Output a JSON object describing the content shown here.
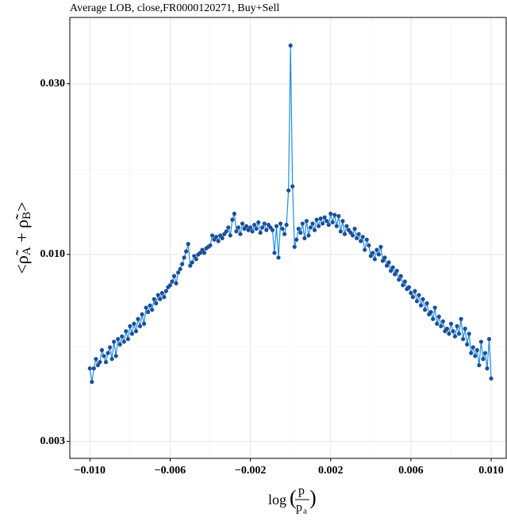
{
  "chart_data": {
    "type": "line",
    "title": "Average LOB, close,FR0000120271, Buy+Sell",
    "x_label": {
      "func": "log",
      "numerator": "p",
      "denominator": "p",
      "sub": "a"
    },
    "y_label": [
      "<ρ̃",
      "A",
      " + ρ̃",
      "B",
      ">"
    ],
    "log_y": true,
    "grid": true,
    "line_color": "#1f8fe0",
    "point_color": "#1c4f96",
    "xlim": [
      -0.011,
      0.01075
    ],
    "ylim": [
      0.00269,
      0.046
    ],
    "xticks": [
      {
        "value": -0.01,
        "label": "−0.010"
      },
      {
        "value": -0.006,
        "label": "−0.006"
      },
      {
        "value": -0.002,
        "label": "−0.002"
      },
      {
        "value": 0.002,
        "label": "0.002"
      },
      {
        "value": 0.006,
        "label": "0.006"
      },
      {
        "value": 0.01,
        "label": "0.010"
      }
    ],
    "yticks": [
      {
        "value": 0.003,
        "label": "0.003"
      },
      {
        "value": 0.01,
        "label": "0.010"
      },
      {
        "value": 0.03,
        "label": "0.030"
      }
    ],
    "x": [
      -0.01,
      -0.0099,
      -0.0098,
      -0.0097,
      -0.0096,
      -0.0095,
      -0.0094,
      -0.0093,
      -0.0092,
      -0.0091,
      -0.009,
      -0.0089,
      -0.0088,
      -0.0087,
      -0.0086,
      -0.0085,
      -0.0084,
      -0.0083,
      -0.0082,
      -0.0081,
      -0.008,
      -0.0079,
      -0.0078,
      -0.0077,
      -0.0076,
      -0.0075,
      -0.0074,
      -0.0073,
      -0.0072,
      -0.0071,
      -0.007,
      -0.0069,
      -0.0068,
      -0.0067,
      -0.0066,
      -0.0065,
      -0.0064,
      -0.0063,
      -0.0062,
      -0.0061,
      -0.006,
      -0.0059,
      -0.0058,
      -0.0057,
      -0.0056,
      -0.0055,
      -0.0054,
      -0.0053,
      -0.0052,
      -0.0051,
      -0.005,
      -0.0049,
      -0.0048,
      -0.0047,
      -0.0046,
      -0.0045,
      -0.0044,
      -0.0043,
      -0.0042,
      -0.0041,
      -0.004,
      -0.0039,
      -0.0038,
      -0.0037,
      -0.0036,
      -0.0035,
      -0.0034,
      -0.0033,
      -0.0032,
      -0.0031,
      -0.003,
      -0.0029,
      -0.0028,
      -0.0027,
      -0.0026,
      -0.0025,
      -0.0024,
      -0.0023,
      -0.0022,
      -0.0021,
      -0.002,
      -0.0019,
      -0.0018,
      -0.0017,
      -0.0016,
      -0.0015,
      -0.0014,
      -0.0013,
      -0.0012,
      -0.0011,
      -0.001,
      -0.0009,
      -0.0008,
      -0.0007,
      -0.0006,
      -0.0005,
      -0.0004,
      -0.0003,
      -0.0002,
      -0.0001,
      0,
      0.0001,
      0.0002,
      0.0003,
      0.0004,
      0.0005,
      0.0006,
      0.0007,
      0.0008,
      0.0009,
      0.001,
      0.0011,
      0.0012,
      0.0013,
      0.0014,
      0.0015,
      0.0016,
      0.0017,
      0.0018,
      0.0019,
      0.002,
      0.0021,
      0.0022,
      0.0023,
      0.0024,
      0.0025,
      0.0026,
      0.0027,
      0.0028,
      0.0029,
      0.003,
      0.0031,
      0.0032,
      0.0033,
      0.0034,
      0.0035,
      0.0036,
      0.0037,
      0.0038,
      0.0039,
      0.004,
      0.0041,
      0.0042,
      0.0043,
      0.0044,
      0.0045,
      0.0046,
      0.0047,
      0.0048,
      0.0049,
      0.005,
      0.0051,
      0.0052,
      0.0053,
      0.0054,
      0.0055,
      0.0056,
      0.0057,
      0.0058,
      0.0059,
      0.006,
      0.0061,
      0.0062,
      0.0063,
      0.0064,
      0.0065,
      0.0066,
      0.0067,
      0.0068,
      0.0069,
      0.007,
      0.0071,
      0.0072,
      0.0073,
      0.0074,
      0.0075,
      0.0076,
      0.0077,
      0.0078,
      0.0079,
      0.008,
      0.0081,
      0.0082,
      0.0083,
      0.0084,
      0.0085,
      0.0086,
      0.0087,
      0.0088,
      0.0089,
      0.009,
      0.0091,
      0.0092,
      0.0093,
      0.0094,
      0.0095,
      0.0096,
      0.0097,
      0.0098,
      0.0099,
      0.01
    ],
    "values": [
      0.0048,
      0.0044,
      0.0048,
      0.0051,
      0.0049,
      0.005,
      0.0054,
      0.0052,
      0.005,
      0.0053,
      0.0055,
      0.0051,
      0.0057,
      0.0052,
      0.0058,
      0.0056,
      0.0059,
      0.0057,
      0.0061,
      0.0058,
      0.0063,
      0.006,
      0.0064,
      0.0061,
      0.0066,
      0.0063,
      0.0068,
      0.0064,
      0.0071,
      0.0069,
      0.0072,
      0.007,
      0.0075,
      0.0073,
      0.0077,
      0.0075,
      0.0078,
      0.0076,
      0.0079,
      0.0081,
      0.0082,
      0.0084,
      0.0087,
      0.0083,
      0.0089,
      0.0091,
      0.0094,
      0.0098,
      0.0102,
      0.0107,
      0.0093,
      0.0095,
      0.0099,
      0.0097,
      0.01,
      0.0101,
      0.0103,
      0.0101,
      0.0104,
      0.0105,
      0.0106,
      0.0113,
      0.011,
      0.0112,
      0.0109,
      0.0113,
      0.0111,
      0.0114,
      0.0116,
      0.0119,
      0.0113,
      0.0125,
      0.013,
      0.0116,
      0.0119,
      0.0114,
      0.0122,
      0.0118,
      0.012,
      0.0117,
      0.0119,
      0.0116,
      0.0121,
      0.0118,
      0.0123,
      0.0115,
      0.0119,
      0.0122,
      0.0117,
      0.0121,
      0.0119,
      0.0117,
      0.0101,
      0.012,
      0.0098,
      0.0122,
      0.0118,
      0.0114,
      0.0121,
      0.0151,
      0.0384,
      0.0155,
      0.0105,
      0.011,
      0.0118,
      0.0115,
      0.0122,
      0.0111,
      0.0124,
      0.0113,
      0.0119,
      0.0122,
      0.0117,
      0.0125,
      0.012,
      0.0126,
      0.0122,
      0.0127,
      0.0124,
      0.0121,
      0.013,
      0.0123,
      0.0129,
      0.012,
      0.0128,
      0.0116,
      0.0124,
      0.0114,
      0.012,
      0.0117,
      0.0115,
      0.0113,
      0.0118,
      0.0111,
      0.0114,
      0.0109,
      0.0112,
      0.0103,
      0.011,
      0.0106,
      0.0099,
      0.0101,
      0.0097,
      0.0103,
      0.01,
      0.0105,
      0.0096,
      0.0098,
      0.0093,
      0.0095,
      0.009,
      0.0092,
      0.0088,
      0.009,
      0.0085,
      0.0087,
      0.0082,
      0.0084,
      0.008,
      0.0081,
      0.0078,
      0.0076,
      0.0079,
      0.0074,
      0.0077,
      0.0072,
      0.0075,
      0.007,
      0.0073,
      0.0068,
      0.0069,
      0.0066,
      0.0071,
      0.0064,
      0.0067,
      0.0063,
      0.0065,
      0.0061,
      0.0062,
      0.006,
      0.0064,
      0.0061,
      0.0059,
      0.0063,
      0.006,
      0.0066,
      0.0058,
      0.0062,
      0.0056,
      0.006,
      0.0053,
      0.0055,
      0.0052,
      0.0054,
      0.0049,
      0.0057,
      0.0051,
      0.0053,
      0.0048,
      0.0058,
      0.0045
    ]
  }
}
